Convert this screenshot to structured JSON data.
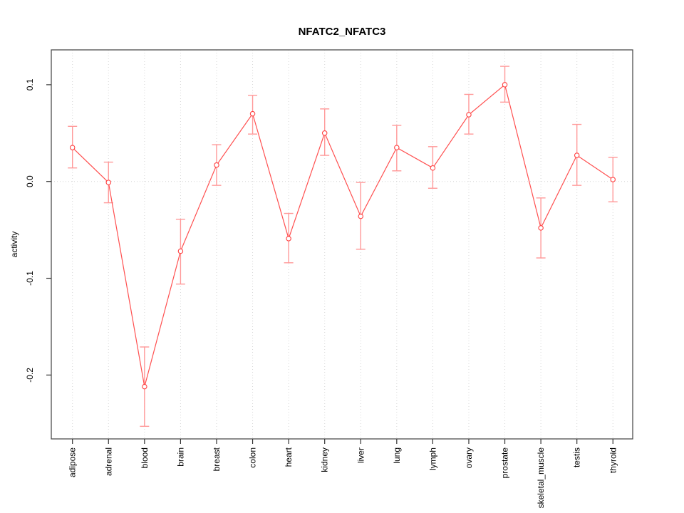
{
  "window": {
    "background": "#ffffff"
  },
  "chart_data": {
    "type": "line",
    "title": "NFATC2_NFATC3",
    "xlabel": "",
    "ylabel": "activity",
    "legend": "none",
    "grid": "vertical-dotted-gridlines-and-dotted-zero-line",
    "marker": "open-circle",
    "error_bars": true,
    "categories": [
      "adipose",
      "adrenal",
      "blood",
      "brain",
      "breast",
      "colon",
      "heart",
      "kidney",
      "liver",
      "lung",
      "lymph",
      "ovary",
      "prostate",
      "skeletal_muscle",
      "testis",
      "thyroid"
    ],
    "series": [
      {
        "name": "activity",
        "values": [
          0.035,
          -0.001,
          -0.212,
          -0.072,
          0.017,
          0.07,
          -0.059,
          0.05,
          -0.036,
          0.035,
          0.014,
          0.069,
          0.1,
          -0.048,
          0.027,
          0.002
        ],
        "ci_low": [
          0.014,
          -0.022,
          -0.253,
          -0.106,
          -0.004,
          0.049,
          -0.084,
          0.027,
          -0.07,
          0.011,
          -0.007,
          0.049,
          0.082,
          -0.079,
          -0.004,
          -0.021
        ],
        "ci_high": [
          0.057,
          0.02,
          -0.171,
          -0.039,
          0.038,
          0.089,
          -0.033,
          0.075,
          -0.001,
          0.058,
          0.036,
          0.09,
          0.119,
          -0.017,
          0.059,
          0.025
        ]
      }
    ],
    "yticks": [
      0.1,
      0.0,
      -0.1,
      -0.2
    ],
    "ylim": [
      -0.266,
      0.136
    ],
    "colors": {
      "line": "#ff5050",
      "marker": "#ff4040",
      "error_bar": "#ff9999",
      "grid": "#d6d6d6",
      "axis_box": "#4d4d4d",
      "tick": "#333333",
      "text": "#000000"
    }
  }
}
